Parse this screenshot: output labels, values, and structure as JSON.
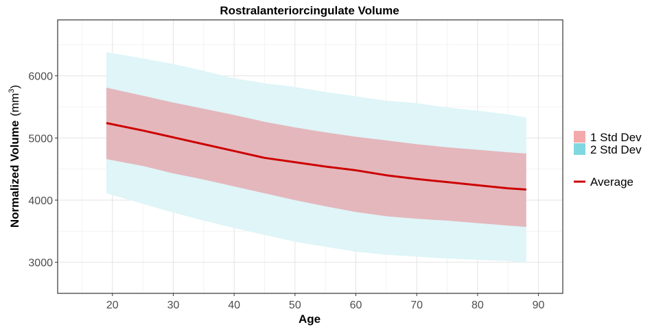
{
  "chart_data": {
    "type": "area",
    "title": "Rostralanteriorcingulate Volume",
    "xlabel": "Age",
    "ylabel": "Normalized Volume",
    "ylabel_unit_base": "(mm",
    "ylabel_unit_sup": "3",
    "ylabel_unit_close": ")",
    "xlim": [
      11,
      94
    ],
    "ylim": [
      2500,
      6900
    ],
    "x_ticks": [
      20,
      30,
      40,
      50,
      60,
      70,
      80,
      90
    ],
    "y_ticks": [
      3000,
      4000,
      5000,
      6000
    ],
    "x_tick_labels": [
      "20",
      "30",
      "40",
      "50",
      "60",
      "70",
      "80",
      "90"
    ],
    "y_tick_labels": [
      "3000",
      "4000",
      "5000",
      "6000"
    ],
    "grid": true,
    "legend_position": "right",
    "x": [
      19,
      25,
      30,
      35,
      40,
      45,
      50,
      55,
      60,
      65,
      70,
      75,
      80,
      85,
      88
    ],
    "series": [
      {
        "name": "2 Std Dev",
        "color": "#7fd8e0",
        "lower": [
          4110,
          3940,
          3800,
          3670,
          3550,
          3440,
          3330,
          3250,
          3170,
          3120,
          3090,
          3060,
          3040,
          3020,
          2990
        ],
        "upper": [
          6380,
          6280,
          6190,
          6080,
          5960,
          5880,
          5820,
          5740,
          5670,
          5600,
          5560,
          5490,
          5440,
          5380,
          5330
        ]
      },
      {
        "name": "1 Std Dev",
        "color": "#e8848a",
        "lower": [
          4660,
          4550,
          4430,
          4330,
          4220,
          4110,
          4000,
          3900,
          3810,
          3740,
          3700,
          3670,
          3630,
          3590,
          3570
        ],
        "upper": [
          5810,
          5680,
          5570,
          5470,
          5370,
          5260,
          5170,
          5090,
          5020,
          4960,
          4900,
          4850,
          4810,
          4770,
          4750
        ]
      },
      {
        "name": "Average",
        "color": "#cc0000",
        "values": [
          5240,
          5120,
          5010,
          4900,
          4790,
          4680,
          4610,
          4540,
          4480,
          4400,
          4340,
          4290,
          4240,
          4190,
          4170
        ]
      }
    ]
  },
  "legend": {
    "items": [
      {
        "label": "1 Std Dev",
        "color": "#f3a9a9"
      },
      {
        "label": "2 Std Dev",
        "color": "#7fd8e0"
      }
    ],
    "average": {
      "label": "Average",
      "color": "#cc0000"
    }
  }
}
